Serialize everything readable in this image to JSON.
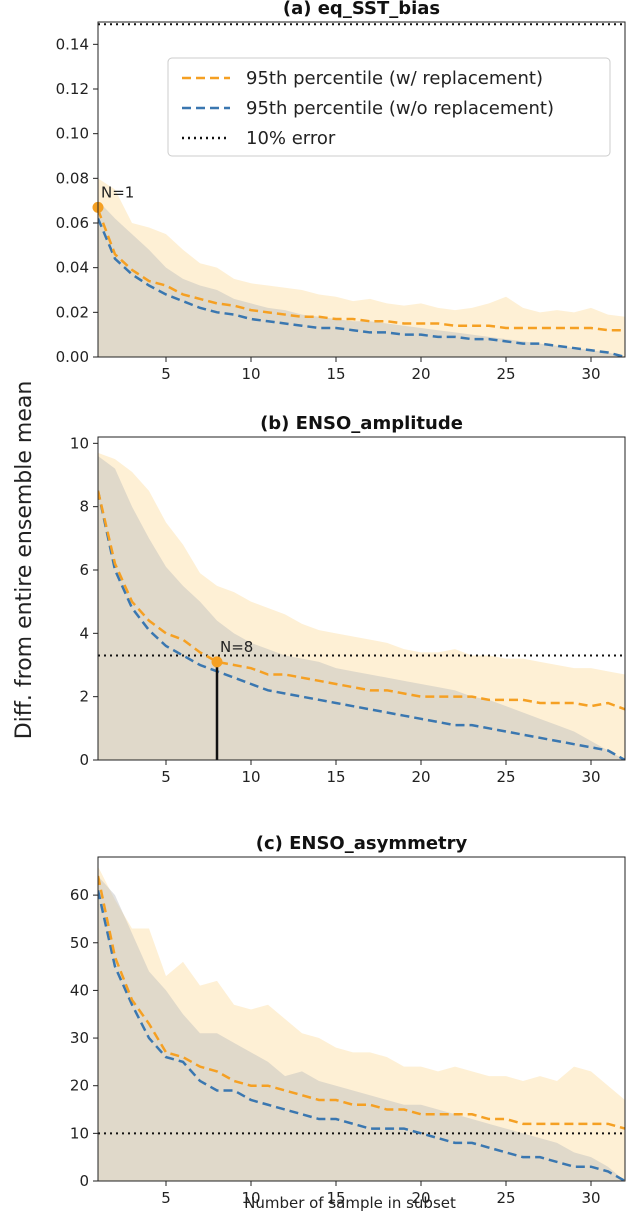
{
  "figure": {
    "ylabel": "Diff. from entire ensemble mean",
    "xlabel": "Number of sample in subset"
  },
  "legend": {
    "items": [
      {
        "label": "95th percentile (w/ replacement)",
        "color": "#f5a023",
        "style": "dashed"
      },
      {
        "label": "95th percentile (w/o replacement)",
        "color": "#3a77b0",
        "style": "dashed"
      },
      {
        "label": "10% error",
        "color": "#111111",
        "style": "dotted"
      }
    ]
  },
  "colors": {
    "orange": "#f5a023",
    "blue": "#3a77b0",
    "band_orange": "#fde8bf",
    "band_gray": "#bdbdbd"
  },
  "chart_data": [
    {
      "type": "line",
      "title": "(a) eq_SST_bias",
      "xlim": [
        1,
        32
      ],
      "ylim": [
        0,
        0.15
      ],
      "xticks": [
        5,
        10,
        15,
        20,
        25,
        30
      ],
      "xtick_labels": [
        "5",
        "10",
        "15",
        "20",
        "25",
        "30"
      ],
      "yticks": [
        0,
        0.02,
        0.04,
        0.06,
        0.08,
        0.1,
        0.12,
        0.14
      ],
      "ytick_labels": [
        "0.00",
        "0.02",
        "0.04",
        "0.06",
        "0.08",
        "0.10",
        "0.12",
        "0.14"
      ],
      "hline": 0.149,
      "annotation": {
        "text": "N=1",
        "x": 1,
        "y": 0.067
      },
      "x": [
        1,
        2,
        3,
        4,
        5,
        6,
        7,
        8,
        9,
        10,
        11,
        12,
        13,
        14,
        15,
        16,
        17,
        18,
        19,
        20,
        21,
        22,
        23,
        24,
        25,
        26,
        27,
        28,
        29,
        30,
        31,
        32
      ],
      "series": [
        {
          "name": "95th percentile (w/ replacement)",
          "values": [
            0.066,
            0.046,
            0.039,
            0.034,
            0.032,
            0.028,
            0.026,
            0.024,
            0.023,
            0.021,
            0.02,
            0.019,
            0.018,
            0.018,
            0.017,
            0.017,
            0.016,
            0.016,
            0.015,
            0.015,
            0.015,
            0.014,
            0.014,
            0.014,
            0.013,
            0.013,
            0.013,
            0.013,
            0.013,
            0.013,
            0.012,
            0.012
          ],
          "band_upper": [
            0.08,
            0.075,
            0.06,
            0.058,
            0.055,
            0.048,
            0.042,
            0.04,
            0.035,
            0.033,
            0.032,
            0.031,
            0.03,
            0.028,
            0.027,
            0.025,
            0.026,
            0.024,
            0.023,
            0.024,
            0.022,
            0.021,
            0.022,
            0.024,
            0.027,
            0.022,
            0.02,
            0.021,
            0.02,
            0.022,
            0.019,
            0.018
          ]
        },
        {
          "name": "95th percentile (w/o replacement)",
          "values": [
            0.062,
            0.044,
            0.037,
            0.032,
            0.028,
            0.025,
            0.022,
            0.02,
            0.019,
            0.017,
            0.016,
            0.015,
            0.014,
            0.013,
            0.013,
            0.012,
            0.011,
            0.011,
            0.01,
            0.01,
            0.009,
            0.009,
            0.008,
            0.008,
            0.007,
            0.006,
            0.006,
            0.005,
            0.004,
            0.003,
            0.002,
            0.0
          ],
          "band_upper": [
            0.07,
            0.062,
            0.055,
            0.048,
            0.04,
            0.035,
            0.032,
            0.03,
            0.026,
            0.024,
            0.022,
            0.021,
            0.019,
            0.018,
            0.017,
            0.016,
            0.016,
            0.015,
            0.014,
            0.013,
            0.012,
            0.011,
            0.01,
            0.009,
            0.008,
            0.007,
            0.006,
            0.005,
            0.004,
            0.003,
            0.002,
            0.0
          ]
        }
      ]
    },
    {
      "type": "line",
      "title": "(b) ENSO_amplitude",
      "xlim": [
        1,
        32
      ],
      "ylim": [
        0,
        10.2
      ],
      "xticks": [
        5,
        10,
        15,
        20,
        25,
        30
      ],
      "xtick_labels": [
        "5",
        "10",
        "15",
        "20",
        "25",
        "30"
      ],
      "yticks": [
        0,
        2,
        4,
        6,
        8,
        10
      ],
      "ytick_labels": [
        "0",
        "2",
        "4",
        "6",
        "8",
        "10"
      ],
      "hline": 3.3,
      "annotation": {
        "text": "N=8",
        "x": 8,
        "y": 3.1
      },
      "vline": {
        "x": 8,
        "y": 3.1
      },
      "x": [
        1,
        2,
        3,
        4,
        5,
        6,
        7,
        8,
        9,
        10,
        11,
        12,
        13,
        14,
        15,
        16,
        17,
        18,
        19,
        20,
        21,
        22,
        23,
        24,
        25,
        26,
        27,
        28,
        29,
        30,
        31,
        32
      ],
      "series": [
        {
          "name": "95th percentile (w/ replacement)",
          "values": [
            8.5,
            6.2,
            5.0,
            4.4,
            4.0,
            3.8,
            3.4,
            3.1,
            3.0,
            2.9,
            2.7,
            2.7,
            2.6,
            2.5,
            2.4,
            2.3,
            2.2,
            2.2,
            2.1,
            2.0,
            2.0,
            2.0,
            2.0,
            1.9,
            1.9,
            1.9,
            1.8,
            1.8,
            1.8,
            1.7,
            1.8,
            1.6
          ],
          "band_upper": [
            9.7,
            9.5,
            9.1,
            8.5,
            7.5,
            6.8,
            5.9,
            5.5,
            5.3,
            5.0,
            4.8,
            4.6,
            4.3,
            4.1,
            4.0,
            3.9,
            3.8,
            3.7,
            3.5,
            3.4,
            3.4,
            3.5,
            3.3,
            3.3,
            3.2,
            3.2,
            3.1,
            3.0,
            2.9,
            2.9,
            2.8,
            2.7
          ]
        },
        {
          "name": "95th percentile (w/o replacement)",
          "values": [
            8.5,
            6.0,
            4.8,
            4.1,
            3.6,
            3.3,
            3.0,
            2.8,
            2.6,
            2.4,
            2.2,
            2.1,
            2.0,
            1.9,
            1.8,
            1.7,
            1.6,
            1.5,
            1.4,
            1.3,
            1.2,
            1.1,
            1.1,
            1.0,
            0.9,
            0.8,
            0.7,
            0.6,
            0.5,
            0.4,
            0.3,
            0.0
          ],
          "band_upper": [
            9.6,
            9.2,
            8.0,
            7.0,
            6.1,
            5.5,
            5.0,
            4.4,
            4.0,
            3.7,
            3.5,
            3.3,
            3.2,
            3.1,
            2.9,
            2.8,
            2.7,
            2.6,
            2.5,
            2.4,
            2.3,
            2.2,
            2.0,
            1.9,
            1.7,
            1.5,
            1.3,
            1.1,
            0.9,
            0.6,
            0.3,
            0.0
          ]
        }
      ]
    },
    {
      "type": "line",
      "title": "(c) ENSO_asymmetry",
      "xlim": [
        1,
        32
      ],
      "ylim": [
        0,
        68
      ],
      "xticks": [
        5,
        10,
        15,
        20,
        25,
        30
      ],
      "xtick_labels": [
        "5",
        "10",
        "15",
        "20",
        "25",
        "30"
      ],
      "yticks": [
        0,
        10,
        20,
        30,
        40,
        50,
        60
      ],
      "ytick_labels": [
        "0",
        "10",
        "20",
        "30",
        "40",
        "50",
        "60"
      ],
      "hline": 10,
      "xlabel": "Number of sample in subset",
      "x": [
        1,
        2,
        3,
        4,
        5,
        6,
        7,
        8,
        9,
        10,
        11,
        12,
        13,
        14,
        15,
        16,
        17,
        18,
        19,
        20,
        21,
        22,
        23,
        24,
        25,
        26,
        27,
        28,
        29,
        30,
        31,
        32
      ],
      "series": [
        {
          "name": "95th percentile (w/ replacement)",
          "values": [
            64,
            47,
            38,
            33,
            27,
            26,
            24,
            23,
            21,
            20,
            20,
            19,
            18,
            17,
            17,
            16,
            16,
            15,
            15,
            14,
            14,
            14,
            14,
            13,
            13,
            12,
            12,
            12,
            12,
            12,
            12,
            11
          ],
          "band_upper": [
            66,
            59,
            53,
            53,
            43,
            46,
            41,
            42,
            37,
            36,
            37,
            34,
            31,
            30,
            28,
            27,
            27,
            26,
            24,
            24,
            23,
            24,
            23,
            22,
            22,
            21,
            22,
            21,
            24,
            23,
            20,
            17
          ]
        },
        {
          "name": "95th percentile (w/o replacement)",
          "values": [
            61,
            45,
            37,
            30,
            26,
            25,
            21,
            19,
            19,
            17,
            16,
            15,
            14,
            13,
            13,
            12,
            11,
            11,
            11,
            10,
            9,
            8,
            8,
            7,
            6,
            5,
            5,
            4,
            3,
            3,
            2,
            0
          ],
          "band_upper": [
            64,
            60,
            52,
            44,
            40,
            35,
            31,
            31,
            29,
            27,
            25,
            22,
            23,
            21,
            20,
            19,
            18,
            17,
            16,
            16,
            15,
            14,
            13,
            12,
            11,
            10,
            9,
            8,
            6,
            5,
            3,
            0
          ]
        }
      ]
    }
  ]
}
